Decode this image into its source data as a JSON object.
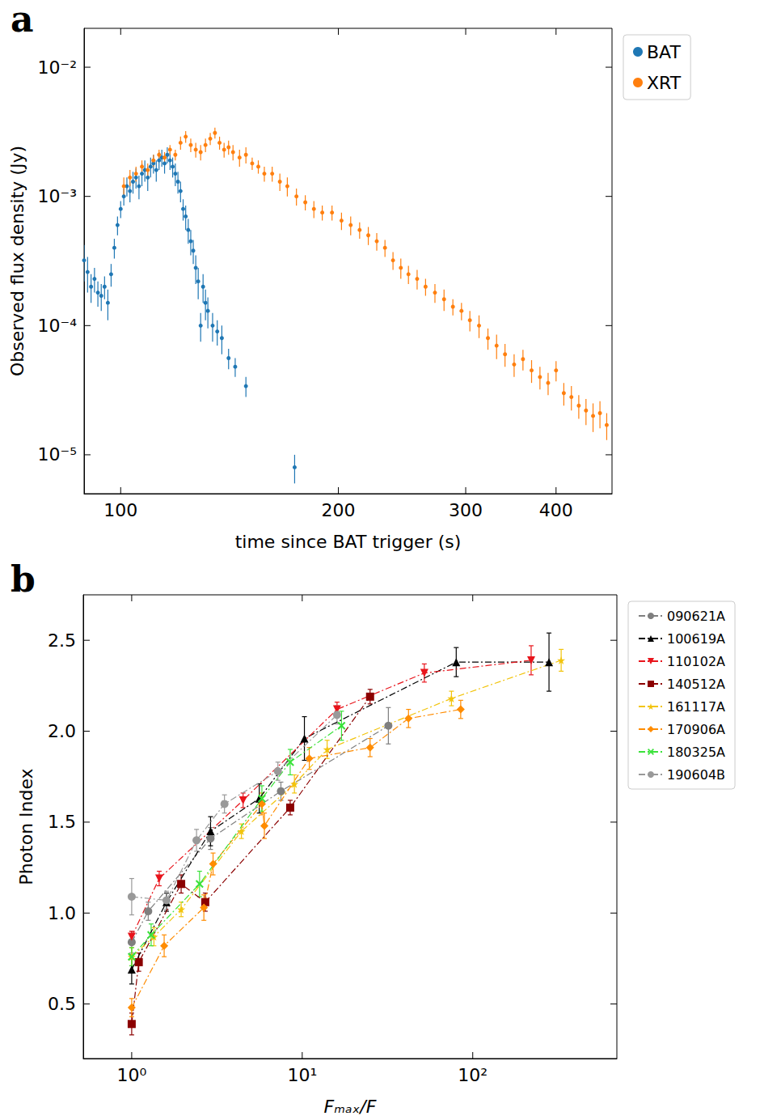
{
  "chart_data": [
    {
      "type": "scatter",
      "title": "a",
      "xlabel": "time since BAT trigger (s)",
      "ylabel": "Observed flux density (Jy)",
      "log": true,
      "grid": false,
      "legend": "right",
      "xlim": [
        89,
        478
      ],
      "ylim": [
        5e-06,
        0.02
      ],
      "xticks": [
        100,
        200,
        300,
        400
      ],
      "yticks": [
        {
          "value": 1e-05,
          "label": "10⁻⁵"
        },
        {
          "value": 0.0001,
          "label": "10⁻⁴"
        },
        {
          "value": 0.001,
          "label": "10⁻³"
        },
        {
          "value": 0.01,
          "label": "10⁻²"
        }
      ],
      "series": [
        {
          "name": "BAT",
          "color": "#1f77b4",
          "marker": "point",
          "x": [
            89,
            90,
            91,
            92,
            93,
            94,
            95,
            96,
            97,
            98,
            99,
            100,
            101,
            102,
            103,
            104,
            105,
            106,
            107,
            108,
            109,
            110,
            111,
            112,
            113,
            114,
            115,
            116,
            117,
            118,
            119,
            120,
            121,
            122,
            123,
            124,
            125,
            126,
            127,
            128,
            129,
            130,
            131,
            132,
            134,
            136,
            138,
            141,
            144,
            149,
            174
          ],
          "values": [
            0.00032,
            0.00026,
            0.0002,
            0.00023,
            0.00018,
            0.00017,
            0.0002,
            0.00015,
            0.00025,
            0.0004,
            0.0006,
            0.0008,
            0.001,
            0.0012,
            0.0011,
            0.0013,
            0.0014,
            0.0012,
            0.0015,
            0.0016,
            0.0014,
            0.0017,
            0.0018,
            0.0016,
            0.0019,
            0.002,
            0.0018,
            0.0021,
            0.0019,
            0.0017,
            0.0015,
            0.0013,
            0.0011,
            0.0008,
            0.0007,
            0.00055,
            0.00045,
            0.00038,
            0.00028,
            0.00022,
            0.0001,
            0.0002,
            0.00015,
            0.00013,
            0.0001,
            9e-05,
            8e-05,
            5.6e-05,
            4.8e-05,
            3.4e-05,
            8e-06
          ],
          "errors": [
            0.0001,
            8e-05,
            5e-05,
            5e-05,
            4e-05,
            4e-05,
            4e-05,
            4e-05,
            5e-05,
            7e-05,
            0.0001,
            0.00012,
            0.00015,
            0.0002,
            0.0002,
            0.00025,
            0.00025,
            0.00025,
            0.0003,
            0.0003,
            0.0003,
            0.0003,
            0.0003,
            0.0003,
            0.0003,
            0.0003,
            0.0003,
            0.0003,
            0.0003,
            0.0003,
            0.0003,
            0.00025,
            0.0002,
            0.00015,
            0.00015,
            0.00012,
            0.0001,
            8e-05,
            7e-05,
            6e-05,
            2.5e-05,
            5e-05,
            4e-05,
            3.5e-05,
            2.5e-05,
            2e-05,
            2e-05,
            1e-05,
            8e-06,
            6e-06,
            2e-06
          ]
        },
        {
          "name": "XRT",
          "color": "#ff7f0e",
          "marker": "point",
          "x": [
            101,
            103,
            105,
            107,
            109,
            111,
            113,
            115,
            117,
            119,
            121,
            123,
            125,
            127,
            129,
            131,
            133,
            135,
            137,
            139,
            141,
            143,
            146,
            149,
            152,
            155,
            158,
            162,
            166,
            170,
            175,
            180,
            185,
            190,
            196,
            202,
            208,
            214,
            220,
            226,
            232,
            238,
            244,
            250,
            257,
            264,
            272,
            280,
            288,
            296,
            304,
            313,
            322,
            331,
            340,
            350,
            360,
            370,
            380,
            390,
            400,
            410,
            420,
            430,
            440,
            450,
            460,
            470
          ],
          "values": [
            0.0012,
            0.0014,
            0.0015,
            0.0017,
            0.0016,
            0.0019,
            0.0021,
            0.002,
            0.0023,
            0.0021,
            0.0026,
            0.0029,
            0.0025,
            0.0023,
            0.0022,
            0.0025,
            0.0028,
            0.0031,
            0.0026,
            0.0023,
            0.0024,
            0.0022,
            0.002,
            0.0021,
            0.0018,
            0.0017,
            0.0015,
            0.0015,
            0.0013,
            0.0012,
            0.001,
            0.0009,
            0.0008,
            0.00075,
            0.00075,
            0.00065,
            0.0006,
            0.00055,
            0.0005,
            0.00045,
            0.0004,
            0.00032,
            0.00028,
            0.00025,
            0.00023,
            0.0002,
            0.00018,
            0.00016,
            0.00014,
            0.00013,
            0.00011,
            0.0001,
            8e-05,
            7e-05,
            6e-05,
            5e-05,
            5.5e-05,
            4.5e-05,
            4e-05,
            3.6e-05,
            4.5e-05,
            3e-05,
            2.8e-05,
            2.4e-05,
            2.2e-05,
            2e-05,
            2.1e-05,
            1.7e-05
          ],
          "errors": [
            0.0002,
            0.0002,
            0.0002,
            0.0002,
            0.0002,
            0.0002,
            0.0002,
            0.0002,
            0.0002,
            0.0002,
            0.0003,
            0.0003,
            0.0003,
            0.0003,
            0.0003,
            0.0003,
            0.0003,
            0.0003,
            0.0003,
            0.0003,
            0.0003,
            0.0003,
            0.0003,
            0.0003,
            0.0002,
            0.0002,
            0.0002,
            0.0002,
            0.0002,
            0.0002,
            0.00015,
            0.00012,
            0.00012,
            0.0001,
            0.0001,
            0.0001,
            0.0001,
            8e-05,
            8e-05,
            7e-05,
            6e-05,
            5e-05,
            5e-05,
            4e-05,
            4e-05,
            3e-05,
            3e-05,
            3e-05,
            2e-05,
            2e-05,
            2e-05,
            2e-05,
            1.5e-05,
            1.5e-05,
            1.2e-05,
            1e-05,
            1e-05,
            9e-06,
            8e-06,
            7e-06,
            8e-06,
            6e-06,
            6e-06,
            5e-06,
            5e-06,
            5e-06,
            5e-06,
            4e-06
          ]
        }
      ]
    },
    {
      "type": "line",
      "title": "b",
      "xlabel": "Fₘₐₓ/F",
      "ylabel": "Photon Index",
      "log": "x",
      "grid": false,
      "legend": "right",
      "xlim": [
        0.52,
        700
      ],
      "ylim": [
        0.2,
        2.75
      ],
      "xticks": [
        {
          "value": 1,
          "label": "10⁰"
        },
        {
          "value": 10,
          "label": "10¹"
        },
        {
          "value": 100,
          "label": "10²"
        }
      ],
      "yticks": [
        0.5,
        {
          "value": 1,
          "label": "1.0"
        },
        1.5,
        {
          "value": 2,
          "label": "2.0"
        },
        2.5
      ],
      "series": [
        {
          "name": "090621A",
          "color": "#7f7f7f",
          "marker": "circle",
          "line_style": "dashdot",
          "x": [
            1.0,
            1.25,
            2.9,
            7.5,
            32
          ],
          "values": [
            0.84,
            1.01,
            1.41,
            1.67,
            2.03
          ],
          "errors": [
            0.06,
            0.05,
            0.06,
            0.05,
            0.1
          ]
        },
        {
          "name": "100619A",
          "color": "#000000",
          "marker": "triangle",
          "line_style": "dashdot",
          "x": [
            1.0,
            1.6,
            2.9,
            5.6,
            10.3,
            80,
            280
          ],
          "values": [
            0.69,
            1.06,
            1.45,
            1.63,
            1.96,
            2.38,
            2.38
          ],
          "errors": [
            0.08,
            0.05,
            0.08,
            0.08,
            0.12,
            0.08,
            0.16
          ]
        },
        {
          "name": "110102A",
          "color": "#e8141b",
          "marker": "triangle_down",
          "line_style": "dashdot",
          "x": [
            1.0,
            1.45,
            4.5,
            16,
            52,
            220
          ],
          "values": [
            0.87,
            1.19,
            1.62,
            2.12,
            2.32,
            2.39
          ],
          "errors": [
            0.03,
            0.04,
            0.04,
            0.04,
            0.05,
            0.08
          ]
        },
        {
          "name": "140512A",
          "color": "#8b0000",
          "marker": "square",
          "line_style": "dashdot",
          "x": [
            1.0,
            1.1,
            1.95,
            2.7,
            8.5,
            25
          ],
          "values": [
            0.39,
            0.73,
            1.16,
            1.06,
            1.58,
            2.19
          ],
          "errors": [
            0.06,
            0.05,
            0.05,
            0.05,
            0.04,
            0.04
          ]
        },
        {
          "name": "161117A",
          "color": "#f2c40c",
          "marker": "star",
          "line_style": "dashdot",
          "x": [
            1.0,
            1.35,
            1.95,
            4.4,
            9,
            14,
            75,
            330
          ],
          "values": [
            0.76,
            0.87,
            1.02,
            1.45,
            1.71,
            1.9,
            2.18,
            2.39
          ],
          "errors": [
            0.05,
            0.05,
            0.04,
            0.04,
            0.05,
            0.05,
            0.04,
            0.06
          ]
        },
        {
          "name": "170906A",
          "color": "#ff8c00",
          "marker": "diamond",
          "line_style": "dashdot",
          "x": [
            1.0,
            1.55,
            2.65,
            3.0,
            5.8,
            6.0,
            11,
            25,
            42,
            85
          ],
          "values": [
            0.48,
            0.82,
            1.03,
            1.27,
            1.6,
            1.48,
            1.85,
            1.91,
            2.07,
            2.12
          ],
          "errors": [
            0.05,
            0.06,
            0.07,
            0.06,
            0.06,
            0.07,
            0.06,
            0.05,
            0.05,
            0.05
          ]
        },
        {
          "name": "180325A",
          "color": "#3ae23a",
          "marker": "x",
          "line_style": "dashdot",
          "x": [
            1.0,
            1.3,
            2.5,
            5.8,
            8.5,
            17
          ],
          "values": [
            0.76,
            0.88,
            1.16,
            1.63,
            1.83,
            2.03
          ],
          "errors": [
            0.05,
            0.06,
            0.07,
            0.07,
            0.07,
            0.08
          ]
        },
        {
          "name": "190604B",
          "color": "#999999",
          "marker": "circle",
          "line_style": "dashdot",
          "x": [
            1.0,
            1.6,
            2.4,
            3.5,
            7.2,
            16
          ],
          "values": [
            1.09,
            1.07,
            1.4,
            1.6,
            1.78,
            2.09
          ],
          "errors": [
            0.1,
            0.05,
            0.06,
            0.05,
            0.05,
            0.05
          ]
        }
      ]
    }
  ]
}
